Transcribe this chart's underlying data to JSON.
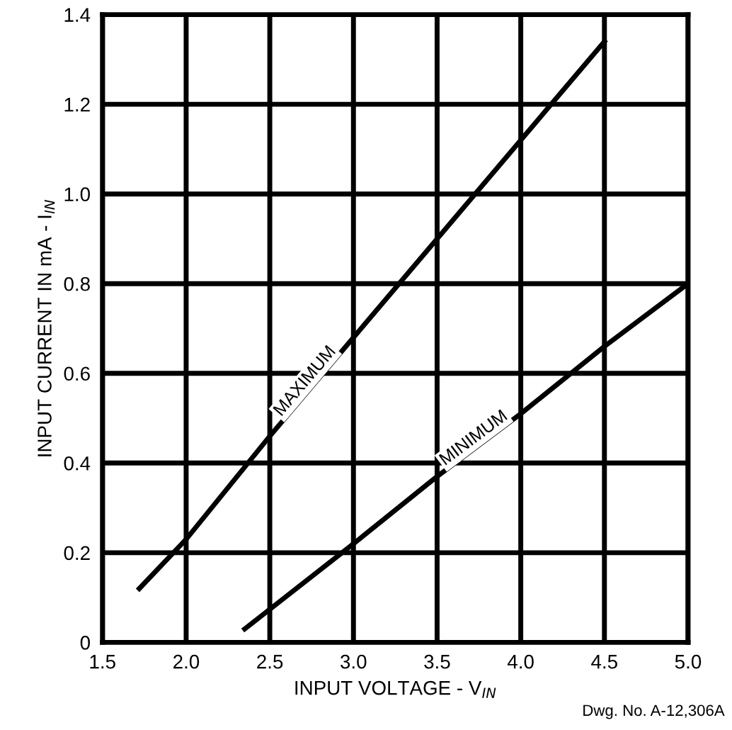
{
  "chart_data": {
    "type": "line",
    "xlabel": "INPUT VOLTAGE - V$_{IN}$",
    "ylabel": "INPUT CURRENT IN mA - I$_{IN}$",
    "annotations": [
      "Dwg. No. A-12,306A"
    ],
    "series": [
      {
        "name": "MAXIMUM",
        "color": "#000000",
        "x": [
          1.72,
          2.0,
          2.5,
          3.0,
          3.5,
          4.0,
          4.5
        ],
        "values": [
          0.12,
          0.23,
          0.46,
          0.68,
          0.9,
          1.12,
          1.34
        ]
      },
      {
        "name": "MINIMUM",
        "color": "#000000",
        "x": [
          2.35,
          3.0,
          3.5,
          4.0,
          4.5,
          5.0
        ],
        "values": [
          0.03,
          0.22,
          0.37,
          0.51,
          0.66,
          0.8
        ]
      }
    ],
    "xlim": [
      1.5,
      5.0
    ],
    "ylim": [
      0,
      1.4
    ],
    "xticks": [
      1.5,
      {
        "value": 2,
        "label": "2.0"
      },
      2.5,
      {
        "value": 3,
        "label": "3.0"
      },
      3.5,
      {
        "value": 4,
        "label": "4.0"
      },
      4.5,
      {
        "value": 5,
        "label": "5.0"
      }
    ],
    "yticks": [
      0,
      0.2,
      0.4,
      0.6,
      0.8,
      {
        "value": 1,
        "label": "1.0"
      },
      1.2,
      1.4
    ],
    "grid": true,
    "legend": false,
    "marker": "none",
    "line_style": "solid"
  }
}
